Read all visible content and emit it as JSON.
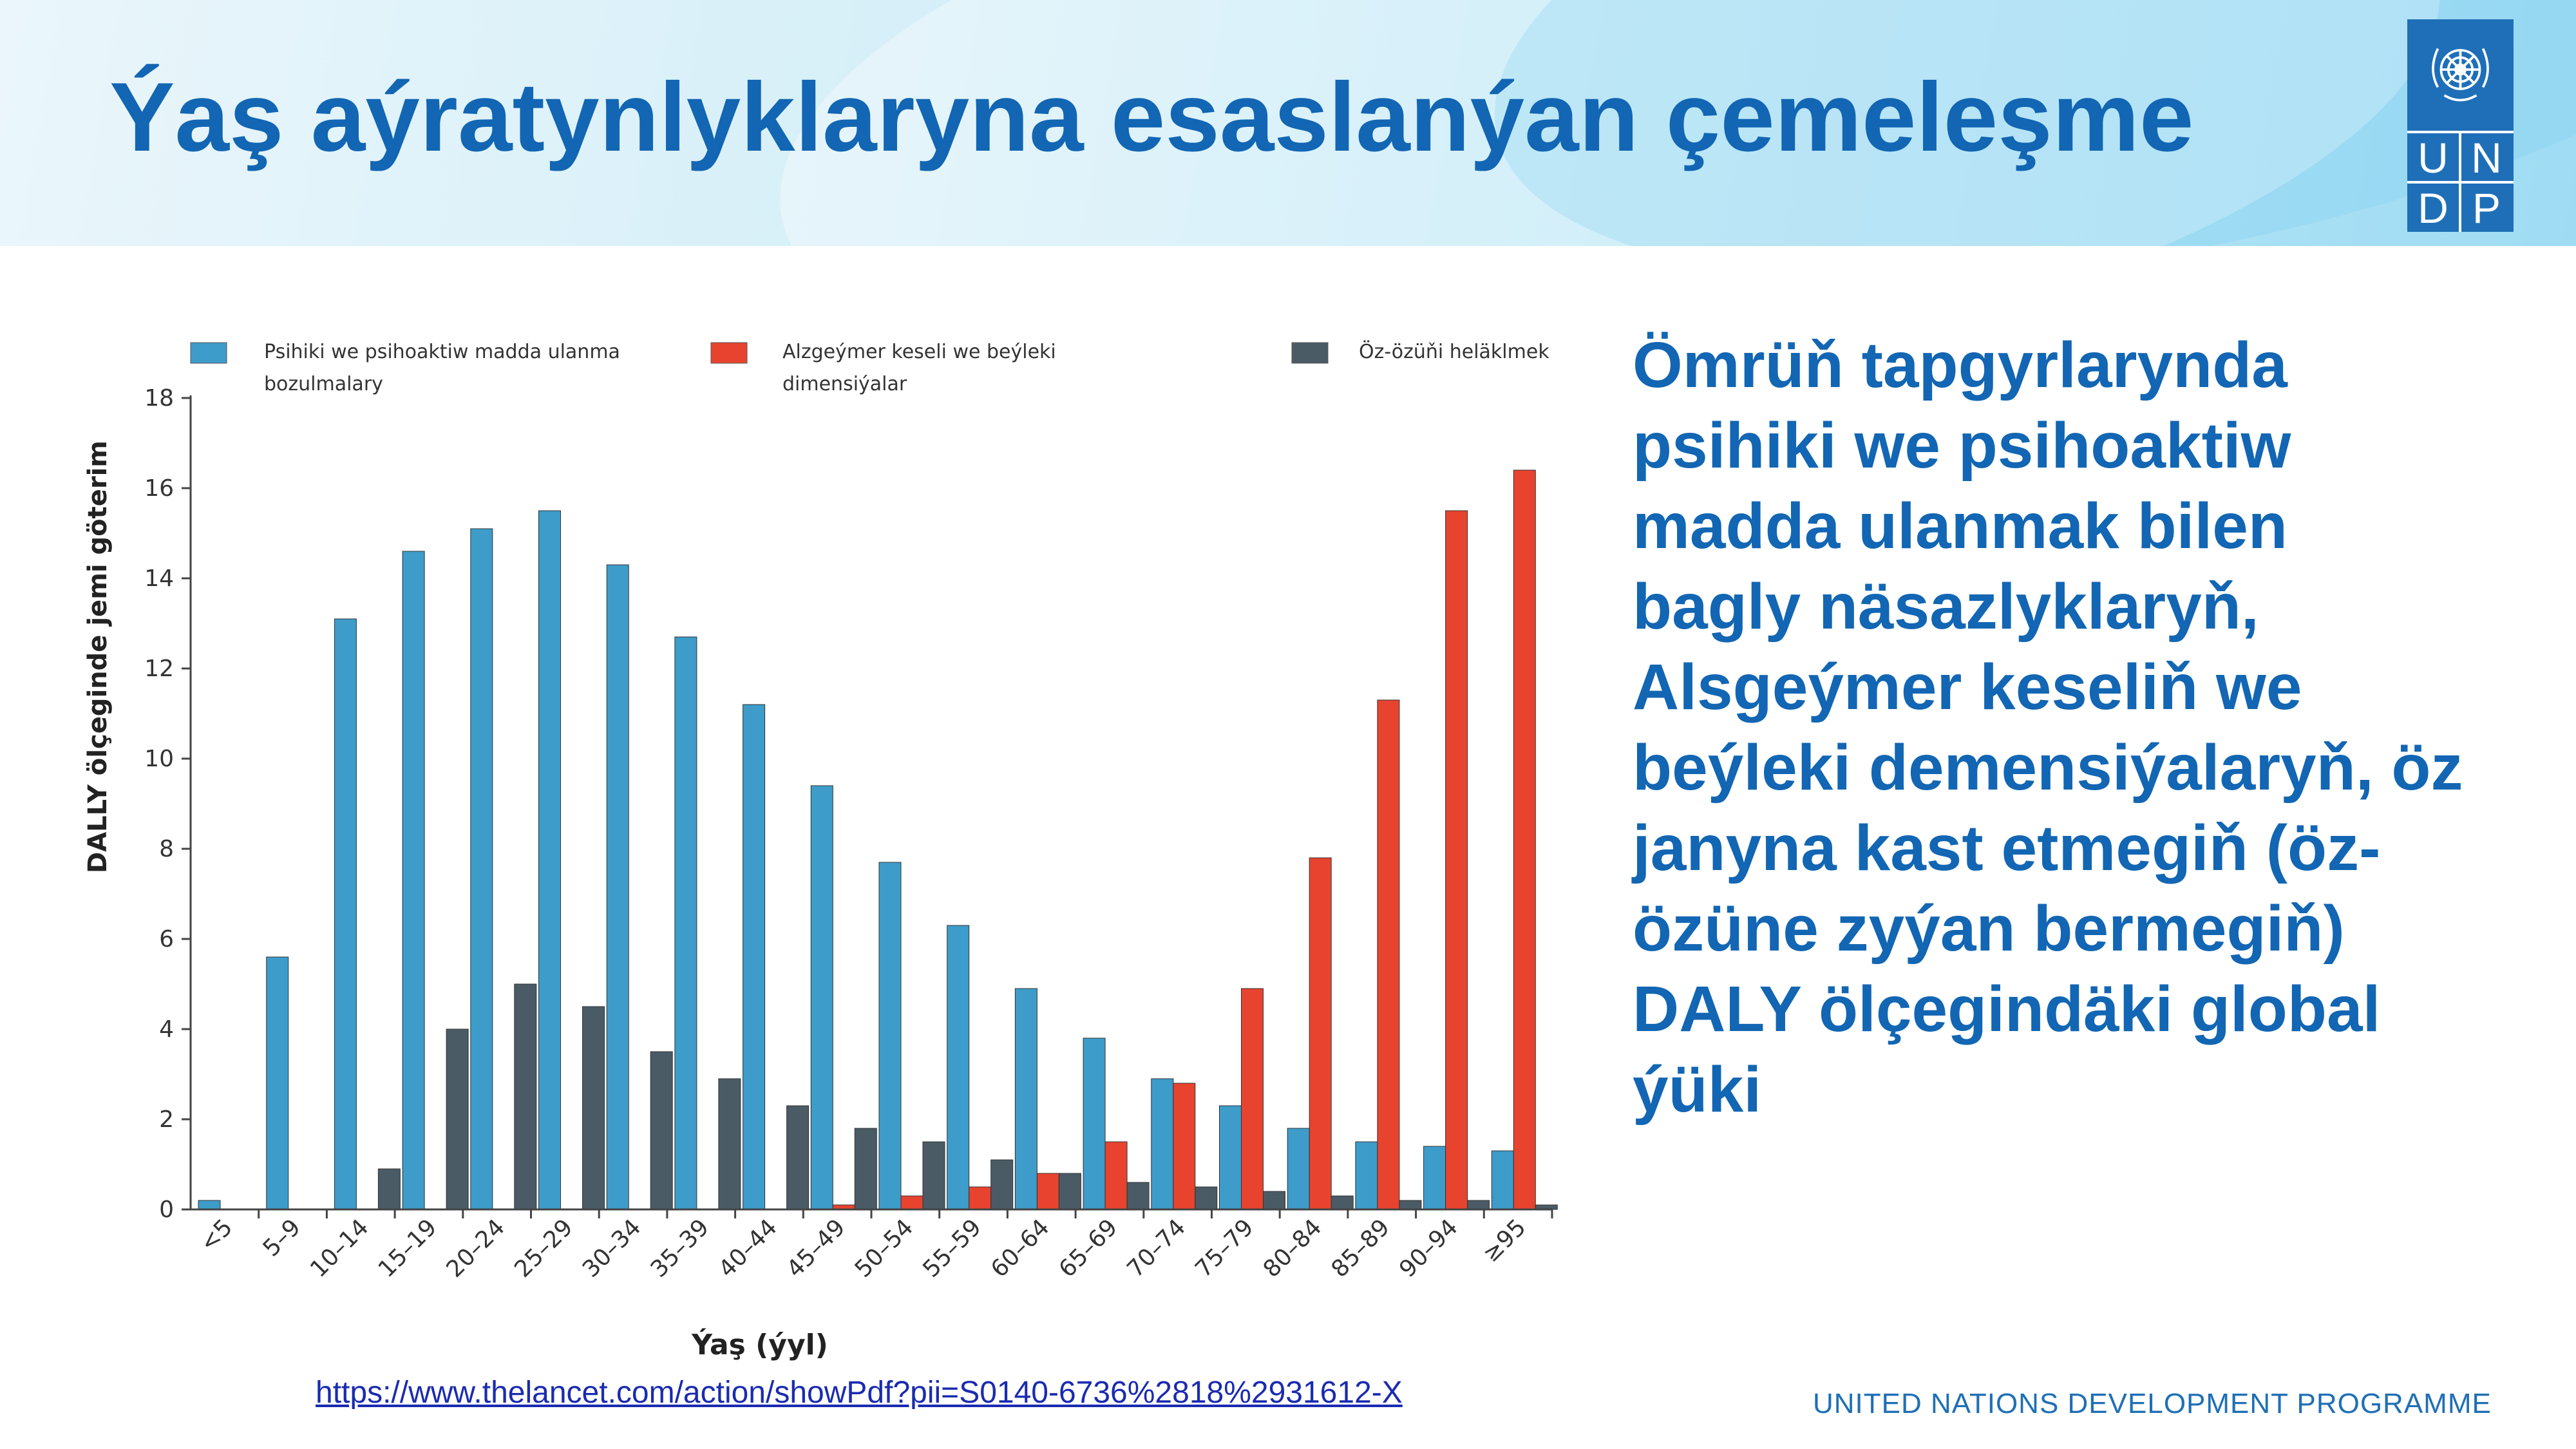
{
  "slide": {
    "title": "Ýaş aýratynlyklaryna esaslanýan çemeleşme",
    "side_text": "Ömrüň tapgyrlarynda psihiki we psihoaktiw madda ulanmak bilen bagly näsazlyklaryň, Alsgeýmer keseliň we beýleki demensiýalaryň, öz janyna kast etmegiň (öz-özüne zyýan bermegiň) DALY ölçegindäki global ýüki",
    "link_text": "https://www.thelancet.com/action/showPdf?pii=S0140-6736%2818%2931612-X",
    "footer": "UNITED NATIONS DEVELOPMENT PROGRAMME",
    "logo": {
      "letters": [
        "U",
        "N",
        "D",
        "P"
      ],
      "icon": "un-emblem-icon"
    }
  },
  "colors": {
    "title": "#1266b3",
    "brand": "#1e6fb8",
    "series1": "#3d9cc9",
    "series2": "#e8432e",
    "series3": "#4a5b66"
  },
  "chart_data": {
    "type": "bar",
    "xlabel": "Ýaş (ýyl)",
    "ylabel": "DALLY ölçeginde jemi göterim",
    "ylim": [
      0,
      18
    ],
    "yticks": [
      0,
      2,
      4,
      6,
      8,
      10,
      12,
      14,
      16,
      18
    ],
    "grid": false,
    "legend_position": "top",
    "categories": [
      "<5",
      "5–9",
      "10–14",
      "15–19",
      "20–24",
      "25–29",
      "30–34",
      "35–39",
      "40–44",
      "45–49",
      "50–54",
      "55–59",
      "60–64",
      "65–69",
      "70–74",
      "75–79",
      "80–84",
      "85–89",
      "90–94",
      "≥95"
    ],
    "series": [
      {
        "name": "Psihiki we psihoaktiw madda ulanma bozulmalary",
        "values": [
          0.2,
          5.6,
          13.1,
          14.6,
          15.1,
          15.5,
          14.3,
          12.7,
          11.2,
          9.4,
          7.7,
          6.3,
          4.9,
          3.8,
          2.9,
          2.3,
          1.8,
          1.5,
          1.4,
          1.3
        ]
      },
      {
        "name": "Alzgeýmer keseli we beýleki dimensiýalar",
        "values": [
          0,
          0,
          0,
          0,
          0,
          0,
          0,
          0,
          0,
          0.1,
          0.3,
          0.5,
          0.8,
          1.5,
          2.8,
          4.9,
          7.8,
          11.3,
          15.5,
          16.4
        ]
      },
      {
        "name": "Öz-özüňi heläklmek",
        "values": [
          0,
          0,
          0.9,
          4.0,
          5.0,
          4.5,
          3.5,
          2.9,
          2.3,
          1.8,
          1.5,
          1.1,
          0.8,
          0.6,
          0.5,
          0.4,
          0.3,
          0.2,
          0.2,
          0.1
        ]
      }
    ]
  }
}
